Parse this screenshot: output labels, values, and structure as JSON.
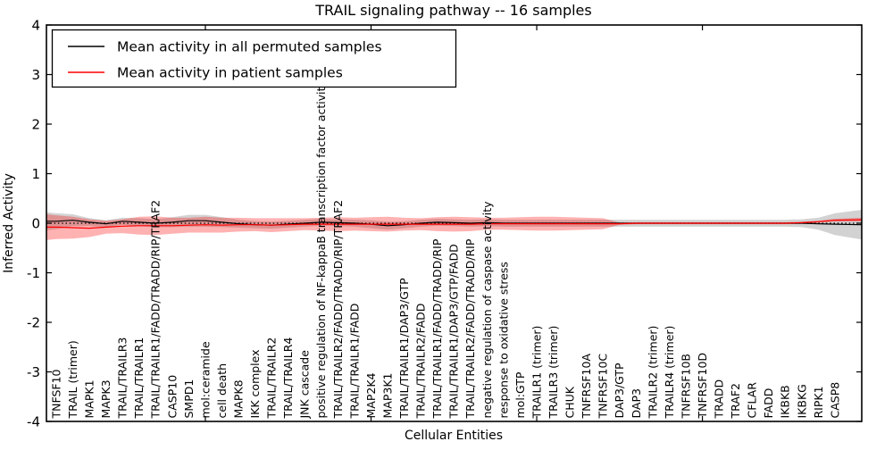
{
  "chart_data": {
    "type": "line",
    "title": "TRAIL signaling pathway -- 16 samples",
    "xlabel": "Cellular Entities",
    "ylabel": "Inferred Activity",
    "ylim": [
      -4,
      4
    ],
    "yticks": [
      "4",
      "3",
      "2",
      "1",
      "0",
      "-1",
      "-2",
      "-3",
      "-4"
    ],
    "ytick_values": [
      4,
      3,
      2,
      1,
      0,
      -1,
      -2,
      -3,
      -4
    ],
    "xticks_major_positions": [
      10,
      20,
      30,
      40
    ],
    "grid": false,
    "legend_position": "upper left",
    "legend": [
      {
        "label": "Mean activity in all permuted samples",
        "color": "#000000"
      },
      {
        "label": "Mean activity in patient samples",
        "color": "#ff0000"
      }
    ],
    "zero_reference_line": {
      "style": "dotted",
      "color": "#000000",
      "y": 0
    },
    "categories": [
      "TNFSF10",
      "TRAIL (trimer)",
      "MAPK1",
      "MAPK3",
      "TRAIL/TRAILR3",
      "TRAIL/TRAILR1",
      "TRAIL/TRAILR1/FADD/TRADD/RIP/TRAF2",
      "CASP10",
      "SMPD1",
      "mol:ceramide",
      "cell death",
      "MAPK8",
      "IKK complex",
      "TRAIL/TRAILR2",
      "TRAIL/TRAILR4",
      "JNK cascade",
      "positive regulation of NF-kappaB transcription factor activity",
      "TRAIL/TRAILR2/FADD/TRADD/RIP/TRAF2",
      "TRAIL/TRAILR1/FADD",
      "MAP2K4",
      "MAP3K1",
      "TRAIL/TRAILR1/DAP3/GTP",
      "TRAIL/TRAILR2/FADD",
      "TRAIL/TRAILR1/FADD/TRADD/RIP",
      "TRAIL/TRAILR1/DAP3/GTP/FADD",
      "TRAIL/TRAILR2/FADD/TRADD/RIP",
      "negative regulation of caspase activity",
      "response to oxidative stress",
      "mol:GTP",
      "TRAILR1 (trimer)",
      "TRAILR3 (trimer)",
      "CHUK",
      "TNFRSF10A",
      "TNFRSF10C",
      "DAP3/GTP",
      "DAP3",
      "TRAILR2 (trimer)",
      "TRAILR4 (trimer)",
      "TNFRSF10B",
      "TNFRSF10D",
      "TRADD",
      "TRAF2",
      "CFLAR",
      "FADD",
      "IKBKB",
      "IKBKG",
      "RIPK1",
      "CASP8"
    ],
    "series": [
      {
        "name": "Mean activity in all permuted samples",
        "color": "#000000",
        "values": [
          0.04,
          0.06,
          0.02,
          -0.01,
          0.04,
          0.02,
          0.0,
          0.02,
          0.05,
          0.05,
          0.02,
          -0.01,
          -0.03,
          -0.04,
          -0.02,
          0.0,
          0.02,
          0.01,
          0.0,
          -0.02,
          -0.05,
          -0.03,
          0.0,
          0.02,
          0.01,
          0.0,
          0.01,
          0.0,
          0.0,
          0.0,
          0.0,
          0.0,
          0.0,
          0.0,
          0.0,
          0.0,
          0.0,
          0.0,
          0.0,
          0.0,
          0.0,
          0.0,
          0.0,
          0.0,
          0.0,
          0.0,
          -0.01,
          -0.02
        ],
        "band_halfwidth": [
          0.16,
          0.12,
          0.08,
          0.07,
          0.07,
          0.08,
          0.08,
          0.1,
          0.12,
          0.12,
          0.1,
          0.08,
          0.07,
          0.07,
          0.07,
          0.07,
          0.07,
          0.07,
          0.07,
          0.08,
          0.08,
          0.07,
          0.07,
          0.07,
          0.07,
          0.07,
          0.07,
          0.07,
          0.07,
          0.07,
          0.07,
          0.07,
          0.07,
          0.07,
          0.07,
          0.07,
          0.07,
          0.07,
          0.07,
          0.07,
          0.07,
          0.07,
          0.07,
          0.07,
          0.07,
          0.08,
          0.12,
          0.22
        ],
        "band_color": "rgba(125,125,125,0.35)"
      },
      {
        "name": "Mean activity in patient samples",
        "color": "#ff0000",
        "values": [
          -0.08,
          -0.09,
          -0.1,
          -0.08,
          -0.06,
          -0.05,
          -0.05,
          -0.05,
          -0.04,
          -0.03,
          -0.04,
          -0.03,
          -0.03,
          -0.04,
          -0.03,
          -0.02,
          -0.02,
          -0.02,
          -0.02,
          -0.02,
          -0.02,
          -0.02,
          -0.02,
          -0.02,
          -0.02,
          -0.02,
          -0.01,
          -0.01,
          -0.01,
          -0.01,
          -0.01,
          -0.01,
          -0.01,
          -0.01,
          -0.01,
          0.0,
          0.0,
          0.0,
          0.0,
          0.0,
          0.0,
          0.0,
          0.0,
          0.0,
          0.0,
          0.01,
          0.03,
          0.06
        ],
        "band_halfwidth": [
          0.24,
          0.22,
          0.18,
          0.13,
          0.14,
          0.18,
          0.19,
          0.16,
          0.15,
          0.16,
          0.15,
          0.14,
          0.13,
          0.14,
          0.13,
          0.12,
          0.13,
          0.14,
          0.13,
          0.14,
          0.15,
          0.13,
          0.12,
          0.14,
          0.15,
          0.14,
          0.12,
          0.12,
          0.13,
          0.14,
          0.14,
          0.13,
          0.12,
          0.11,
          0.02,
          0.02,
          0.02,
          0.02,
          0.02,
          0.02,
          0.02,
          0.02,
          0.02,
          0.02,
          0.02,
          0.02,
          0.02,
          0.03
        ],
        "band_color": "rgba(255,0,0,0.30)"
      }
    ],
    "edges": {
      "left": {
        "permuted_mean": 0.04,
        "patient_mean": -0.08,
        "permuted_hw": 0.18,
        "patient_hw": 0.26
      },
      "right": {
        "permuted_mean": -0.03,
        "patient_mean": 0.07,
        "permuted_hw": 0.3,
        "patient_hw": 0.04
      }
    },
    "colors": {
      "frame": "#000000",
      "background": "#ffffff",
      "permuted_line": "#000000",
      "patient_line": "#ff0000"
    }
  }
}
